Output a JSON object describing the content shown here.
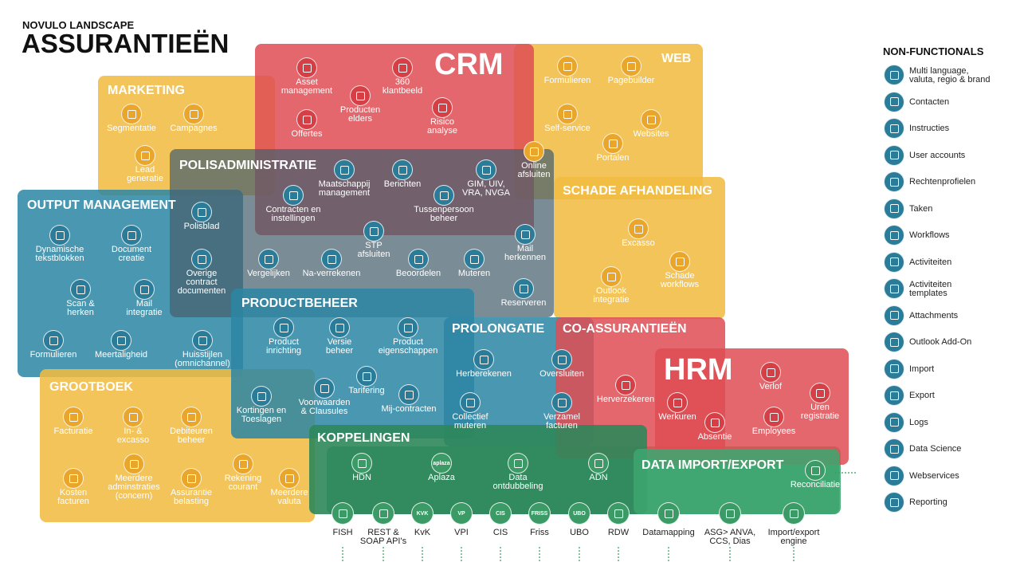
{
  "header": {
    "subtitle": "NOVULO LANDSCAPE",
    "title": "ASSURANTIEËN"
  },
  "regions": [
    {
      "name": "MARKETING",
      "items": [
        {
          "label": "Segmentatie"
        },
        {
          "label": "Campagnes"
        },
        {
          "label": "Lead\ngeneratie"
        }
      ]
    },
    {
      "name": "WEB",
      "items": [
        {
          "label": "Formulieren"
        },
        {
          "label": "Pagebuilder"
        },
        {
          "label": "Self-service"
        },
        {
          "label": "Websites"
        },
        {
          "label": "Portalen"
        },
        {
          "label": "Online\nafsluiten"
        }
      ]
    },
    {
      "name": "CRM",
      "items": [
        {
          "label": "Asset\nmanagement"
        },
        {
          "label": "360\nklantbeeld"
        },
        {
          "label": "Producten\nelders"
        },
        {
          "label": "Offertes"
        },
        {
          "label": "Risico\nanalyse"
        }
      ]
    },
    {
      "name": "SCHADE AFHANDELING",
      "items": [
        {
          "label": "Excasso"
        },
        {
          "label": "Schade\nworkflows"
        },
        {
          "label": "Outlook\nintegratie"
        }
      ]
    },
    {
      "name": "OUTPUT MANAGEMENT",
      "items": [
        {
          "label": "Polisblad"
        },
        {
          "label": "Dynamische\ntekstblokken"
        },
        {
          "label": "Document\ncreatie"
        },
        {
          "label": "Overige\ncontract\ndocumenten"
        },
        {
          "label": "Scan &\nherken"
        },
        {
          "label": "Mail\nintegratie"
        },
        {
          "label": "Formulieren"
        },
        {
          "label": "Meertaligheid"
        },
        {
          "label": "Huisstijlen\n(omnichannel)"
        }
      ]
    },
    {
      "name": "GROOTBOEK",
      "items": [
        {
          "label": "Facturatie"
        },
        {
          "label": "In- &\nexcasso"
        },
        {
          "label": "Debiteuren\nbeheer"
        },
        {
          "label": "Meerdere\nadminstraties\n(concern)"
        },
        {
          "label": "Kosten\nfacturen"
        },
        {
          "label": "Assurantie\nbelasting"
        },
        {
          "label": "Rekening\ncourant"
        },
        {
          "label": "Meerdere\nvaluta"
        }
      ]
    },
    {
      "name": "POLISADMINISTRATIE",
      "items": [
        {
          "label": "Maatschappij\nmanagement"
        },
        {
          "label": "Berichten"
        },
        {
          "label": "GIM, UIV,\nVRA, NVGA"
        },
        {
          "label": "Contracten en\ninstellingen"
        },
        {
          "label": "Tussenpersoon\nbeheer"
        },
        {
          "label": "STP\nafsluiten"
        },
        {
          "label": "Vergelijken"
        },
        {
          "label": "Na-verrekenen"
        },
        {
          "label": "Beoordelen"
        },
        {
          "label": "Muteren"
        },
        {
          "label": "Mail\nherkennen"
        },
        {
          "label": "Reserveren"
        }
      ]
    },
    {
      "name": "PRODUCTBEHEER",
      "items": [
        {
          "label": "Product\ninrichting"
        },
        {
          "label": "Versie\nbeheer"
        },
        {
          "label": "Product\neigenschappen"
        },
        {
          "label": "Tarifering"
        },
        {
          "label": "Kortingen en\nToeslagen"
        },
        {
          "label": "Voorwaarden\n& Clausules"
        },
        {
          "label": "Mij-contracten"
        }
      ]
    },
    {
      "name": "PROLONGATIE",
      "items": [
        {
          "label": "Herberekenen"
        },
        {
          "label": "Oversluiten"
        },
        {
          "label": "Collectief\nmuteren"
        },
        {
          "label": "Verzamel\nfacturen"
        }
      ]
    },
    {
      "name": "CO-ASSURANTIEËN",
      "items": [
        {
          "label": "Herverzekeren"
        }
      ]
    },
    {
      "name": "HRM",
      "items": [
        {
          "label": "Verlof"
        },
        {
          "label": "Uren\nregistratie"
        },
        {
          "label": "Werkuren"
        },
        {
          "label": "Absentie"
        },
        {
          "label": "Employees"
        }
      ]
    },
    {
      "name": "KOPPELINGEN",
      "items": [
        {
          "label": "HDN"
        },
        {
          "label": "Aplaza",
          "logo": "aplaza"
        },
        {
          "label": "Data\nontdubbeling"
        },
        {
          "label": "ADN"
        }
      ]
    },
    {
      "name": "DATA IMPORT/EXPORT",
      "items": [
        {
          "label": "Reconciliatie"
        }
      ]
    }
  ],
  "integrations": [
    {
      "label": "FISH"
    },
    {
      "label": "REST &\nSOAP API's"
    },
    {
      "label": "KvK",
      "logo": "KVK"
    },
    {
      "label": "VPI",
      "logo": "VP"
    },
    {
      "label": "CIS",
      "logo": "CIS"
    },
    {
      "label": "Friss",
      "logo": "FRISS"
    },
    {
      "label": "UBO",
      "logo": "UBO"
    },
    {
      "label": "RDW"
    },
    {
      "label": "Datamapping"
    },
    {
      "label": "ASG> ANVA,\nCCS, Dias"
    },
    {
      "label": "Import/export\nengine"
    }
  ],
  "non_functionals": {
    "title": "NON-FUNCTIONALS",
    "items": [
      "Multi language,\nvaluta, regio & brand",
      "Contacten",
      "Instructies",
      "User accounts",
      "Rechtenprofielen",
      "Taken",
      "Workflows",
      "Activiteiten",
      "Activiteiten\ntemplates",
      "Attachments",
      "Outlook Add-On",
      "Import",
      "Export",
      "Logs",
      "Data Science",
      "Webservices",
      "Reporting"
    ]
  }
}
